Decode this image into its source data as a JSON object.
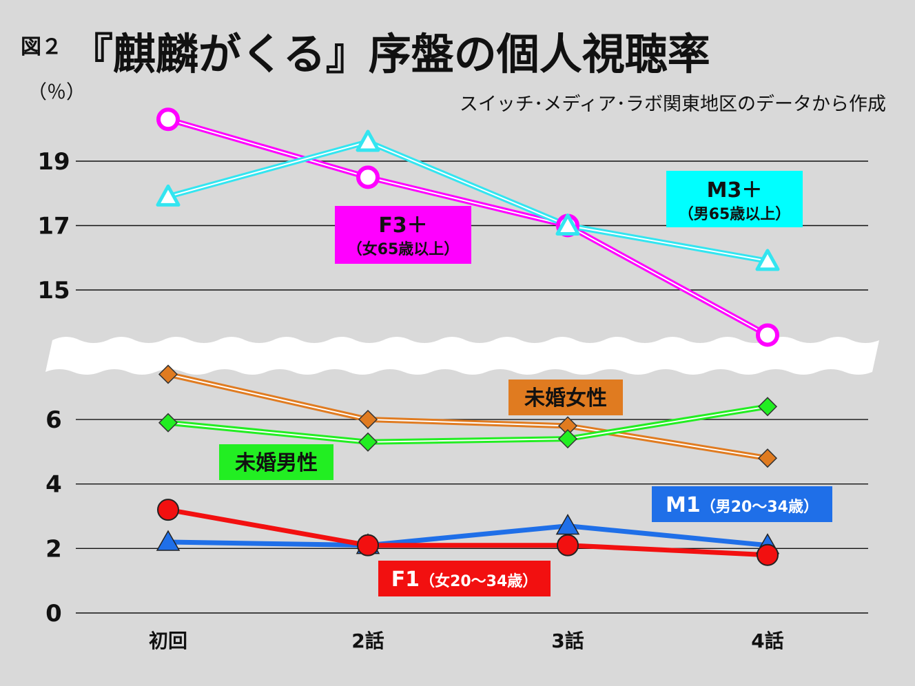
{
  "figure_no": "図２",
  "title": "『麒麟がくる』序盤の個人視聴率",
  "unit": "（％）",
  "source": "スイッチ･メディア･ラボ関東地区のデータから作成",
  "chart_data": {
    "type": "line",
    "categories": [
      "初回",
      "2話",
      "3話",
      "4話"
    ],
    "ylabel": "（％）",
    "y_ticks_upper": [
      15,
      17,
      19
    ],
    "y_ticks_lower": [
      0,
      2,
      4,
      6
    ],
    "ylim_upper": [
      13.8,
      20.6
    ],
    "ylim_lower": [
      0,
      7.8
    ],
    "axis_break": true,
    "grid": true,
    "series": [
      {
        "key": "F3",
        "name": "F3＋",
        "sub": "（女65歳以上）",
        "values": [
          20.3,
          18.5,
          17.0,
          13.6
        ],
        "color": "#ff00ff",
        "marker": "circle-open",
        "style": "double",
        "axis": "upper"
      },
      {
        "key": "M3",
        "name": "M3＋",
        "sub": "（男65歳以上）",
        "values": [
          17.9,
          19.6,
          17.0,
          15.9
        ],
        "color": "#33e5f0",
        "marker": "triangle-open",
        "style": "double",
        "axis": "upper"
      },
      {
        "key": "UF",
        "name": "未婚女性",
        "sub": "",
        "values": [
          7.4,
          6.0,
          5.8,
          4.8
        ],
        "color": "#e07b20",
        "marker": "diamond",
        "style": "double",
        "axis": "lower"
      },
      {
        "key": "UM",
        "name": "未婚男性",
        "sub": "",
        "values": [
          5.9,
          5.3,
          5.4,
          6.4
        ],
        "color": "#22ee22",
        "marker": "diamond",
        "style": "double",
        "axis": "lower"
      },
      {
        "key": "M1",
        "name": "M1",
        "sub": "（男20〜34歳）",
        "values": [
          2.2,
          2.1,
          2.7,
          2.1
        ],
        "color": "#1f6fe8",
        "marker": "triangle",
        "style": "solid",
        "axis": "lower"
      },
      {
        "key": "F1",
        "name": "F1",
        "sub": "（女20〜34歳）",
        "values": [
          3.2,
          2.1,
          2.1,
          1.8
        ],
        "color": "#f21010",
        "marker": "circle",
        "style": "solid",
        "axis": "lower"
      }
    ]
  }
}
